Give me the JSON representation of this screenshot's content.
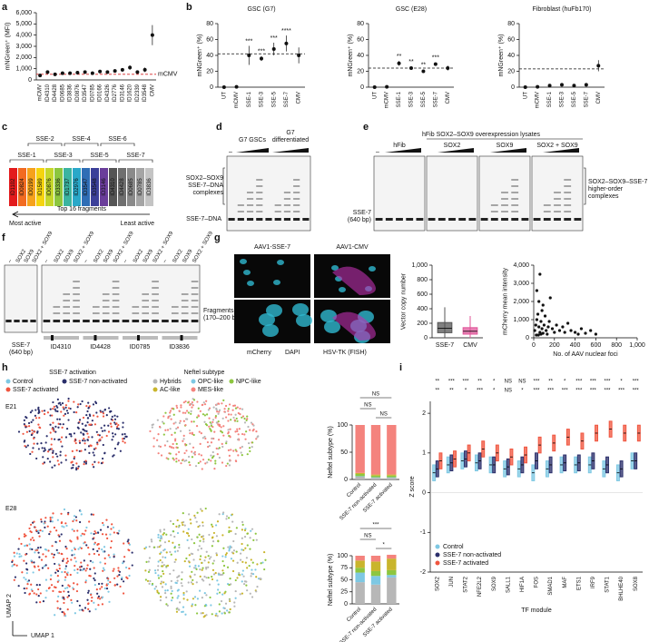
{
  "chart_data": [
    {
      "type": "dot",
      "ylabel": "mNGreen⁺ (MFI)",
      "color": "#111",
      "categories": [
        "mCMV",
        "ID4310",
        "ID4428",
        "ID0685",
        "ID3836",
        "ID0876",
        "ID3547",
        "ID0785",
        "ID0166",
        "ID4326",
        "ID2776",
        "ID3146",
        "ID1620",
        "ID2339",
        "ID3548",
        "CMV"
      ],
      "values": [
        400,
        700,
        500,
        600,
        600,
        650,
        700,
        600,
        750,
        700,
        800,
        900,
        1100,
        700,
        900,
        4000
      ],
      "errors": [
        150,
        150,
        150,
        150,
        150,
        150,
        150,
        150,
        150,
        150,
        150,
        150,
        200,
        150,
        200,
        900
      ],
      "ylim": [
        0,
        6000
      ],
      "yticks": [
        0,
        {
          "value": 1000,
          "label": "1,000"
        },
        {
          "value": 2000,
          "label": "2,000"
        },
        {
          "value": 3000,
          "label": "3,000"
        },
        {
          "value": 4000,
          "label": "4,000"
        },
        {
          "value": 5000,
          "label": "5,000"
        },
        {
          "value": 6000,
          "label": "6,000"
        }
      ],
      "reference": 500,
      "reference_label": "mCMV",
      "reference_color": "#d62728"
    },
    {
      "type": "dot",
      "title": "GSC (G7)",
      "ylabel": "mNGreen⁺ (%)",
      "color": "#111",
      "categories": [
        "UT",
        "mCMV",
        "SSE-1",
        "SSE-3",
        "SSE-5",
        "SSE-7",
        "CMV"
      ],
      "values": [
        0,
        0.5,
        40,
        36,
        48,
        55,
        40
      ],
      "errors": [
        0.5,
        0.5,
        12,
        3,
        8,
        10,
        10
      ],
      "annotations": [
        null,
        null,
        "***",
        "***",
        "***",
        "****",
        null
      ],
      "ylim": [
        0,
        80
      ],
      "yticks": [
        0,
        20,
        40,
        60,
        80
      ],
      "reference": 42,
      "reference_color": "#111"
    },
    {
      "type": "dot",
      "title": "GSC (E28)",
      "ylabel": "mNGreen⁺ (%)",
      "color": "#111",
      "categories": [
        "UT",
        "mCMV",
        "SSE-1",
        "SSE-3",
        "SSE-5",
        "SSE-7",
        "CMV"
      ],
      "values": [
        0,
        0.5,
        30,
        24,
        20,
        29,
        24
      ],
      "errors": [
        0.5,
        0.5,
        3,
        2,
        2,
        2,
        3
      ],
      "annotations": [
        null,
        null,
        "**",
        "**",
        "**",
        "***",
        null
      ],
      "ylim": [
        0,
        80
      ],
      "yticks": [
        0,
        20,
        40,
        60,
        80
      ],
      "reference": 24,
      "reference_color": "#111"
    },
    {
      "type": "dot",
      "title": "Fibroblast (huFb170)",
      "ylabel": "mNGreen⁺ (%)",
      "color": "#111",
      "categories": [
        "UT",
        "mCMV",
        "SSE-1",
        "SSE-3",
        "SSE-5",
        "SSE-7",
        "CMV"
      ],
      "values": [
        0,
        0.5,
        2,
        3,
        2,
        3,
        27
      ],
      "errors": [
        0.5,
        0.5,
        1,
        1,
        1,
        1,
        7
      ],
      "ylim": [
        0,
        80
      ],
      "yticks": [
        0,
        20,
        40,
        60,
        80
      ],
      "reference": 23,
      "reference_color": "#111"
    },
    {
      "type": "box",
      "ylabel": "Vector copy number",
      "categories": [
        "SSE-7",
        "CMV"
      ],
      "colors": [
        "#555555",
        "#e0559a"
      ],
      "q1": [
        70,
        50
      ],
      "median": [
        130,
        90
      ],
      "q3": [
        210,
        140
      ],
      "whisker_low": [
        0,
        0
      ],
      "whisker_high": [
        420,
        300
      ],
      "ylim": [
        0,
        1000
      ],
      "yticks": [
        0,
        200,
        400,
        600,
        800,
        {
          "value": 1000,
          "label": "1,000"
        }
      ]
    },
    {
      "type": "scatter",
      "ylabel": "mCherry mean intensity",
      "xlabel": "No. of AAV nuclear foci",
      "color": "#111",
      "x": [
        10,
        20,
        30,
        40,
        50,
        60,
        70,
        80,
        90,
        100,
        120,
        140,
        160,
        180,
        200,
        220,
        250,
        280,
        300,
        330,
        360,
        400,
        430,
        460,
        500,
        550,
        600,
        30,
        50,
        80,
        110,
        150,
        60,
        90,
        130,
        25,
        45,
        70
      ],
      "y": [
        400,
        700,
        1000,
        1300,
        600,
        3500,
        900,
        500,
        1800,
        700,
        400,
        600,
        2200,
        500,
        300,
        700,
        400,
        600,
        300,
        800,
        400,
        300,
        200,
        500,
        250,
        400,
        200,
        2600,
        2000,
        1500,
        1200,
        900,
        300,
        250,
        200,
        150,
        150,
        200
      ],
      "xlim": [
        0,
        1000
      ],
      "xticks": [
        0,
        200,
        400,
        600,
        800,
        {
          "value": 1000,
          "label": "1,000"
        }
      ],
      "ylim": [
        0,
        4000
      ],
      "yticks": [
        0,
        {
          "value": 1000,
          "label": "1,000"
        },
        {
          "value": 2000,
          "label": "2,000"
        },
        {
          "value": 3000,
          "label": "3,000"
        },
        {
          "value": 4000,
          "label": "4,000"
        }
      ]
    },
    {
      "type": "stacked_bar",
      "ylabel": "Neftel subtype (%)",
      "categories": [
        "Control",
        "SSE-7 non-activated",
        "SSE-7 activated"
      ],
      "series": [
        {
          "name": "Hybrids",
          "color": "#b7b7b7",
          "values": [
            5,
            3,
            3
          ]
        },
        {
          "name": "OPC-like",
          "color": "#7ec8e3",
          "values": [
            1,
            1,
            1
          ]
        },
        {
          "name": "NPC-like",
          "color": "#8dc63f",
          "values": [
            4,
            3,
            3
          ]
        },
        {
          "name": "AC-like",
          "color": "#c9b52c",
          "values": [
            2,
            2,
            2
          ]
        },
        {
          "name": "MES-like",
          "color": "#f4837d",
          "values": [
            88,
            91,
            91
          ]
        }
      ],
      "significance": [
        "NS",
        "NS",
        "NS"
      ],
      "ylim": [
        0,
        100
      ],
      "yticks": [
        0,
        50,
        100
      ]
    },
    {
      "type": "stacked_bar",
      "ylabel": "Neftel subtype (%)",
      "categories": [
        "Control",
        "SSE-7 non-activated",
        "SSE-7 activated"
      ],
      "series": [
        {
          "name": "Hybrids",
          "color": "#b7b7b7",
          "values": [
            45,
            40,
            55
          ]
        },
        {
          "name": "OPC-like",
          "color": "#7ec8e3",
          "values": [
            20,
            18,
            5
          ]
        },
        {
          "name": "NPC-like",
          "color": "#8dc63f",
          "values": [
            10,
            10,
            10
          ]
        },
        {
          "name": "AC-like",
          "color": "#c9b52c",
          "values": [
            15,
            20,
            24
          ]
        },
        {
          "name": "MES-like",
          "color": "#f4837d",
          "values": [
            10,
            12,
            8
          ]
        }
      ],
      "significance": [
        "***",
        "NS",
        "*"
      ],
      "ylim": [
        0,
        100
      ],
      "yticks": [
        0,
        25,
        50,
        75,
        100
      ]
    },
    {
      "type": "box",
      "ylabel": "Z score",
      "xlabel": "TF module",
      "categories": [
        "SOX2",
        "JUN",
        "STAT2",
        "NFE2L2",
        "SOX9",
        "SALL1",
        "HIF1A",
        "FOS",
        "SMAD1",
        "MAF",
        "ETS1",
        "IRF9",
        "STAT1",
        "BHLHE40",
        "SOX8"
      ],
      "series": [
        {
          "name": "Control",
          "color": "#7ec8e3",
          "q1": [
            0.3,
            0.5,
            0.6,
            0.55,
            0.5,
            0.4,
            0.4,
            0.3,
            0.4,
            0.5,
            0.5,
            0.5,
            0.4,
            0.3,
            0.6
          ],
          "median": [
            0.5,
            0.7,
            0.8,
            0.75,
            0.7,
            0.6,
            0.6,
            0.5,
            0.6,
            0.7,
            0.7,
            0.7,
            0.6,
            0.5,
            0.8
          ],
          "q3": [
            0.7,
            0.9,
            1.0,
            0.95,
            0.9,
            0.8,
            0.8,
            0.7,
            0.8,
            0.9,
            0.9,
            0.9,
            0.8,
            0.7,
            1.0
          ]
        },
        {
          "name": "SSE-7 non-activated",
          "color": "#2b2f6b",
          "q1": [
            0.4,
            0.55,
            0.65,
            0.6,
            0.5,
            0.45,
            0.5,
            0.6,
            0.5,
            0.55,
            0.55,
            0.6,
            0.5,
            0.4,
            0.6
          ],
          "median": [
            0.6,
            0.75,
            0.85,
            0.8,
            0.7,
            0.65,
            0.7,
            0.8,
            0.7,
            0.75,
            0.75,
            0.8,
            0.7,
            0.6,
            0.8
          ],
          "q3": [
            0.8,
            0.95,
            1.05,
            1.0,
            0.9,
            0.85,
            0.9,
            1.0,
            0.9,
            0.95,
            0.95,
            1.0,
            0.9,
            0.8,
            1.0
          ]
        },
        {
          "name": "SSE-7 activated",
          "color": "#f0553f",
          "q1": [
            0.6,
            0.65,
            0.8,
            0.9,
            0.8,
            0.7,
            0.75,
            1.0,
            1.05,
            1.2,
            1.1,
            1.3,
            1.4,
            1.3,
            1.3
          ],
          "median": [
            0.8,
            0.85,
            1.0,
            1.1,
            1.0,
            0.9,
            0.95,
            1.2,
            1.25,
            1.4,
            1.3,
            1.5,
            1.6,
            1.5,
            1.5
          ],
          "q3": [
            1.0,
            1.05,
            1.2,
            1.3,
            1.2,
            1.1,
            1.15,
            1.4,
            1.45,
            1.6,
            1.5,
            1.7,
            1.8,
            1.7,
            1.7
          ]
        }
      ],
      "significance": [
        [
          "**",
          "***",
          "***",
          "**",
          "*",
          "NS",
          "NS",
          "***",
          "**",
          "*",
          "***",
          "***",
          "***",
          "*",
          "***"
        ],
        [
          "**",
          "**",
          "*",
          "***",
          "*",
          "NS",
          "*",
          "***",
          "***",
          "***",
          "***",
          "***",
          "***",
          "***",
          "***"
        ]
      ],
      "ylim": [
        -2,
        2.3
      ],
      "yticks": [
        -2,
        -1,
        0,
        1,
        2
      ]
    }
  ],
  "labels": {
    "panels": [
      "a",
      "b",
      "c",
      "d",
      "e",
      "f",
      "g",
      "h",
      "i"
    ],
    "c": {
      "sse_top": [
        "SSE-2",
        "SSE-4",
        "SSE-6"
      ],
      "sse_bottom": [
        "SSE-1",
        "SSE-3",
        "SSE-5",
        "SSE-7"
      ],
      "fragments": [
        "ID1102",
        "ID0824",
        "ID0199",
        "ID1589",
        "ID0876",
        "ID3336",
        "ID1737",
        "ID2976",
        "ID3547",
        "ID3548",
        "ID3146",
        "ID4310",
        "ID4428",
        "ID0685",
        "ID0785",
        "ID3836"
      ],
      "fragment_colors": [
        "#e31a1c",
        "#f26b21",
        "#f6a21c",
        "#f5d40f",
        "#c4d62a",
        "#8cc63e",
        "#3bb4a0",
        "#2aa8c9",
        "#2f6db5",
        "#3b3f99",
        "#6a3d9a",
        "#555555",
        "#6f6f6f",
        "#8a8a8a",
        "#a5a5a5",
        "#c4c4c4"
      ],
      "caption": "Top 16 fragments",
      "left": "Most active",
      "right": "Least active"
    },
    "d": {
      "minus": "–",
      "lanes": [
        "G7 GSCs",
        "G7",
        "differentiated"
      ],
      "complex": [
        "SOX2–SOX9",
        "SSE-7–DNA",
        "complexes"
      ],
      "free": "SSE-7–DNA"
    },
    "e": {
      "header": "hFib SOX2–SOX9 overexpression lysates",
      "groups": [
        "hFib",
        "SOX2",
        "SOX9",
        "SOX2 + SOX9"
      ],
      "minus": "–",
      "free": [
        "SSE-7",
        "(640 bp)"
      ],
      "complex": [
        "SOX2–SOX9–SSE-7",
        "higher-order",
        "complexes"
      ]
    },
    "f": {
      "lanes": [
        "–",
        "SOX2",
        "SOX9",
        "SOX2 + SOX9"
      ],
      "fragments": [
        "Fragments",
        "(170–200 bp)"
      ],
      "probes": [
        "SSE-7",
        "(640 bp)",
        "ID4310",
        "ID4428",
        "ID0785",
        "ID3836"
      ]
    },
    "g": {
      "images": [
        "AAV1-SSE-7",
        "AAV1-CMV"
      ],
      "stains": [
        "mCherry",
        "DAPI",
        "HSV-TK (FISH)"
      ],
      "stain_colors": [
        "#e040c0",
        "#30b8d0",
        "#3cc23c"
      ]
    },
    "h": {
      "titles": [
        "SSE-7 activation",
        "Neftel subtype"
      ],
      "activation": [
        "Control",
        "SSE-7 non-activated",
        "SSE-7 activated"
      ],
      "activation_colors": [
        "#7ec8e3",
        "#2b2f6b",
        "#f0553f"
      ],
      "samples": [
        "E21",
        "E28"
      ],
      "umap": [
        "UMAP 1",
        "UMAP 2"
      ]
    }
  }
}
